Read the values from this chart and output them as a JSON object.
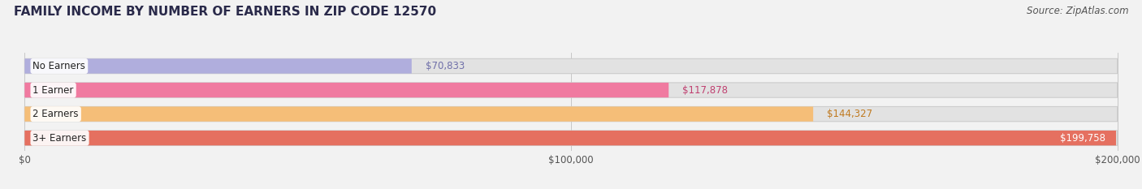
{
  "title": "FAMILY INCOME BY NUMBER OF EARNERS IN ZIP CODE 12570",
  "source": "Source: ZipAtlas.com",
  "categories": [
    "No Earners",
    "1 Earner",
    "2 Earners",
    "3+ Earners"
  ],
  "values": [
    70833,
    117878,
    144327,
    199758
  ],
  "bar_colors": [
    "#b0aedd",
    "#f07aa0",
    "#f5be78",
    "#e57060"
  ],
  "label_colors_outside": [
    "#7070aa",
    "#c04070",
    "#c07a20",
    "#333333"
  ],
  "label_colors_inside": [
    "#ffffff",
    "#ffffff",
    "#ffffff",
    "#ffffff"
  ],
  "background_color": "#f2f2f2",
  "bar_bg_color": "#e2e2e2",
  "xlim_max": 200000,
  "xtick_labels": [
    "$0",
    "$100,000",
    "$200,000"
  ],
  "xtick_values": [
    0,
    100000,
    200000
  ],
  "title_fontsize": 11,
  "source_fontsize": 8.5,
  "label_fontsize": 8.5,
  "value_fontsize": 8.5,
  "tick_fontsize": 8.5,
  "inside_threshold": 180000
}
